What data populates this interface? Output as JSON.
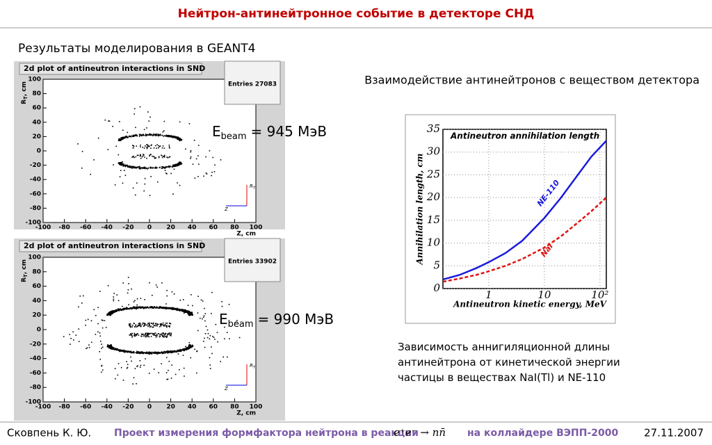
{
  "header": {
    "title": "Нейтрон-антинейтронное событие в детекторе СНД"
  },
  "subtitle": "Результаты моделирования в GEANT4",
  "plots": [
    {
      "title": "2d plot of antineutron interactions in SND",
      "entries_label": "Entries",
      "entries": 27083,
      "ebeam_symbol": "E",
      "ebeam_sub": "beam",
      "ebeam_text": "= 945 МэВ",
      "x_label": "Z, cm",
      "y_label": "R",
      "y_label_sub": "T",
      "y_label_unit": ", cm",
      "icon_r": "R",
      "icon_r_sub": "T",
      "icon_z": "Z",
      "xticks": [
        -100,
        -80,
        -60,
        -40,
        -20,
        0,
        20,
        40,
        60,
        80,
        100
      ],
      "yticks": [
        -100,
        -80,
        -60,
        -40,
        -20,
        0,
        20,
        40,
        60,
        80,
        100
      ]
    },
    {
      "title": "2d plot of antineutron interactions in SND",
      "entries_label": "Entries",
      "entries": 33902,
      "ebeam_symbol": "E",
      "ebeam_sub": "beam",
      "ebeam_text": "= 990 МэВ",
      "x_label": "Z, cm",
      "y_label": "R",
      "y_label_sub": "T",
      "y_label_unit": ", cm",
      "icon_r": "R",
      "icon_r_sub": "T",
      "icon_z": "Z",
      "xticks": [
        -100,
        -80,
        -60,
        -40,
        -20,
        0,
        20,
        40,
        60,
        80,
        100
      ],
      "yticks": [
        -100,
        -80,
        -60,
        -40,
        -20,
        0,
        20,
        40,
        60,
        80,
        100
      ]
    }
  ],
  "right_heading": "Взаимодействие антинейтронов с веществом детектора",
  "chart": {
    "type": "line",
    "title": "Antineutron annihilation length",
    "x_label": "Antineutron kinetic energy, MeV",
    "y_label": "Annihilation length, cm",
    "log_x": true,
    "grid": true,
    "x": [
      0.15,
      0.3,
      0.6,
      1,
      2,
      4,
      10,
      20,
      40,
      70,
      130
    ],
    "series": [
      {
        "name": "NE-110",
        "color": "#1a1adc",
        "dashed": false,
        "values": [
          2,
          3,
          4.5,
          5.8,
          7.8,
          10.5,
          15.5,
          20,
          25,
          29,
          32.5
        ]
      },
      {
        "name": "NaI",
        "color": "#e01010",
        "dashed": true,
        "values": [
          1.5,
          2.2,
          3,
          3.8,
          5,
          6.5,
          9,
          11.5,
          14.5,
          17,
          20
        ]
      }
    ],
    "xlim": [
      0.15,
      130
    ],
    "ylim": [
      0,
      35
    ],
    "xticks": [
      1,
      10,
      {
        "value": 100,
        "label": "10²"
      }
    ],
    "yticks": [
      0,
      5,
      10,
      15,
      20,
      25,
      30,
      35
    ]
  },
  "caption": "Зависимость аннигиляционной длины антинейтрона от кинетической энергии частицы в веществах NaI(Tl) и NE-110",
  "footer": {
    "author": "Сковпень К. Ю.",
    "project": "Проект измерения формфактора нейтрона в реакции",
    "formula": "e⁺e⁻ → nn̄",
    "project_end": "на коллайдере ВЭПП-2000",
    "date": "27.11.2007"
  }
}
